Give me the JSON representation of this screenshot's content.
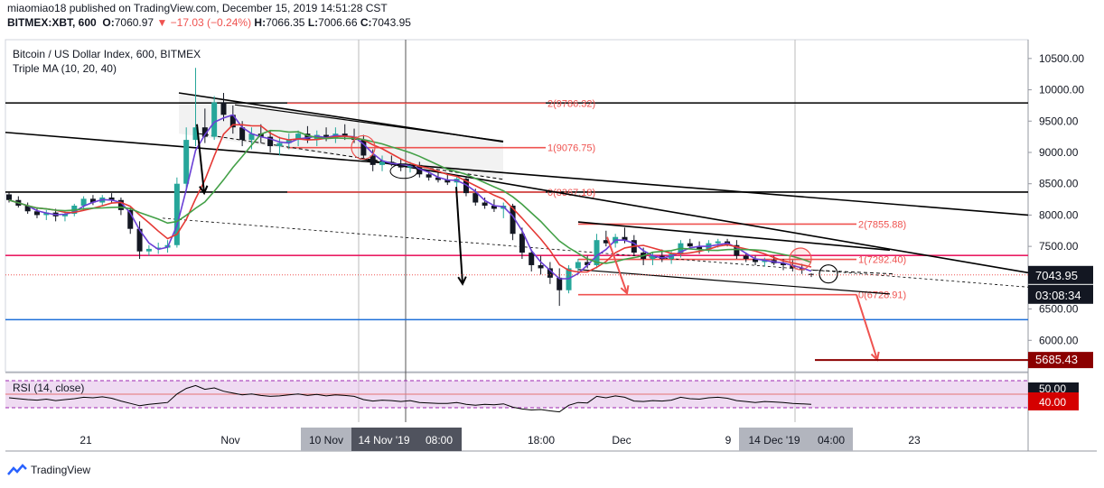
{
  "header": {
    "line1": "miaomiao18 published on TradingView.com, December 15, 2019 14:51:28 CST",
    "symbol": "BITMEX:XBT, 600",
    "open_label": "O:",
    "open": "7060.97",
    "change": "▼ −17.03 (−0.24%)",
    "high_label": "H:",
    "high": "7066.35",
    "low_label": "L:",
    "low": "7006.66",
    "close_label": "C:",
    "close": "7043.95"
  },
  "legend": {
    "title": "Bitcoin / US Dollar Index, 600, BITMEX",
    "indicator": "Triple MA (10, 20, 40)",
    "rsi": "RSI (14, close)"
  },
  "footer": {
    "brand": "TradingView"
  },
  "colors": {
    "up": "#26a69a",
    "down": "#131722",
    "ma10": "#6a3fd6",
    "ma20": "#e53935",
    "ma40": "#43a047",
    "fib": "#ef5350",
    "trend": "#000000",
    "support_blue": "#1e6fd9",
    "resistance_pink": "#e91e63",
    "rsi_band": "#e1bee7",
    "price_tag": "#131722",
    "target_tag": "#8b0000",
    "rsi_tag": "#d50000"
  },
  "chart_data": {
    "type": "candlestick",
    "y_axis": {
      "min": 5500,
      "max": 10800,
      "ticks": [
        "10500.00",
        "10000.00",
        "9500.00",
        "9000.00",
        "8500.00",
        "8000.00",
        "7500.00",
        "7000.00",
        "6500.00",
        "6000.00"
      ]
    },
    "x_ticks": [
      "21",
      "Nov",
      "18:00",
      "Dec",
      "9",
      "23"
    ],
    "x_highlight_labels": [
      "10 Nov",
      "14 Nov '19",
      "08:00",
      "14 Dec '19",
      "04:00"
    ],
    "candles": [
      [
        8330,
        8360,
        8200,
        8240
      ],
      [
        8240,
        8300,
        8120,
        8150
      ],
      [
        8150,
        8200,
        8020,
        8060
      ],
      [
        8060,
        8120,
        7950,
        8000
      ],
      [
        8000,
        8080,
        7920,
        8040
      ],
      [
        8040,
        8100,
        7900,
        7980
      ],
      [
        7980,
        8060,
        7900,
        8020
      ],
      [
        8020,
        8180,
        7980,
        8150
      ],
      [
        8150,
        8300,
        8080,
        8260
      ],
      [
        8260,
        8320,
        8160,
        8200
      ],
      [
        8200,
        8320,
        8140,
        8280
      ],
      [
        8280,
        8350,
        8180,
        8240
      ],
      [
        8240,
        8280,
        8000,
        8080
      ],
      [
        8080,
        8120,
        7700,
        7780
      ],
      [
        7780,
        7900,
        7300,
        7420
      ],
      [
        7420,
        7520,
        7350,
        7460
      ],
      [
        7460,
        7560,
        7380,
        7480
      ],
      [
        7480,
        7600,
        7400,
        7520
      ],
      [
        7520,
        8600,
        7480,
        8500
      ],
      [
        8500,
        9400,
        8400,
        9200
      ],
      [
        9200,
        10350,
        9100,
        9400
      ],
      [
        9400,
        9700,
        9150,
        9250
      ],
      [
        9250,
        9900,
        9200,
        9800
      ],
      [
        9800,
        9950,
        9500,
        9600
      ],
      [
        9600,
        9750,
        9300,
        9400
      ],
      [
        9400,
        9500,
        9100,
        9200
      ],
      [
        9200,
        9400,
        9050,
        9300
      ],
      [
        9300,
        9450,
        9150,
        9250
      ],
      [
        9250,
        9350,
        9000,
        9100
      ],
      [
        9100,
        9250,
        8950,
        9150
      ],
      [
        9150,
        9300,
        9050,
        9200
      ],
      [
        9200,
        9350,
        9100,
        9300
      ],
      [
        9300,
        9420,
        9150,
        9200
      ],
      [
        9200,
        9350,
        9100,
        9280
      ],
      [
        9280,
        9400,
        9180,
        9230
      ],
      [
        9230,
        9400,
        9150,
        9300
      ],
      [
        9300,
        9450,
        9200,
        9250
      ],
      [
        9250,
        9380,
        9150,
        9200
      ],
      [
        9200,
        9280,
        8900,
        8950
      ],
      [
        8950,
        9050,
        8700,
        8800
      ],
      [
        8800,
        8950,
        8700,
        8850
      ],
      [
        8850,
        8950,
        8780,
        8820
      ],
      [
        8820,
        8900,
        8700,
        8760
      ],
      [
        8760,
        8850,
        8680,
        8800
      ],
      [
        8800,
        8850,
        8600,
        8650
      ],
      [
        8650,
        8720,
        8550,
        8600
      ],
      [
        8600,
        8680,
        8520,
        8560
      ],
      [
        8560,
        8640,
        8480,
        8520
      ],
      [
        8520,
        8620,
        8450,
        8580
      ],
      [
        8580,
        8620,
        8300,
        8350
      ],
      [
        8350,
        8420,
        8150,
        8200
      ],
      [
        8200,
        8280,
        8100,
        8150
      ],
      [
        8150,
        8250,
        8050,
        8100
      ],
      [
        8100,
        8200,
        7950,
        8150
      ],
      [
        8150,
        8180,
        7600,
        7700
      ],
      [
        7700,
        7800,
        7300,
        7400
      ],
      [
        7400,
        7450,
        7100,
        7200
      ],
      [
        7200,
        7350,
        7050,
        7150
      ],
      [
        7150,
        7250,
        6900,
        7000
      ],
      [
        7000,
        7150,
        6550,
        6800
      ],
      [
        6800,
        7200,
        6750,
        7150
      ],
      [
        7150,
        7300,
        7050,
        7250
      ],
      [
        7250,
        7350,
        7150,
        7200
      ],
      [
        7200,
        7700,
        7150,
        7600
      ],
      [
        7600,
        7750,
        7500,
        7550
      ],
      [
        7550,
        7700,
        7480,
        7650
      ],
      [
        7650,
        7800,
        7550,
        7600
      ],
      [
        7600,
        7680,
        7350,
        7400
      ],
      [
        7400,
        7480,
        7200,
        7300
      ],
      [
        7300,
        7400,
        7200,
        7350
      ],
      [
        7350,
        7450,
        7250,
        7300
      ],
      [
        7300,
        7420,
        7220,
        7380
      ],
      [
        7380,
        7600,
        7320,
        7550
      ],
      [
        7550,
        7620,
        7450,
        7500
      ],
      [
        7500,
        7580,
        7380,
        7450
      ],
      [
        7450,
        7600,
        7400,
        7550
      ],
      [
        7550,
        7620,
        7480,
        7580
      ],
      [
        7580,
        7620,
        7500,
        7520
      ],
      [
        7520,
        7600,
        7300,
        7350
      ],
      [
        7350,
        7400,
        7250,
        7300
      ],
      [
        7300,
        7350,
        7200,
        7250
      ],
      [
        7250,
        7320,
        7180,
        7280
      ],
      [
        7280,
        7350,
        7200,
        7230
      ],
      [
        7230,
        7300,
        7120,
        7200
      ],
      [
        7200,
        7280,
        7100,
        7150
      ],
      [
        7150,
        7220,
        7060,
        7120
      ],
      [
        7060,
        7070,
        7010,
        7044
      ]
    ],
    "fib_levels": [
      {
        "label": "2(9786.32)",
        "value": 9786.32
      },
      {
        "label": "1(9076.75)",
        "value": 9076.75
      },
      {
        "label": "0(8367.18)",
        "value": 8367.18
      },
      {
        "label": "2(7855.88)",
        "value": 7855.88
      },
      {
        "label": "1(7292.40)",
        "value": 7292.4
      },
      {
        "label": "0(6728.91)",
        "value": 6728.91
      }
    ],
    "horizontal_lines": {
      "black": [
        9790,
        8367
      ],
      "pink": 7355,
      "blue": 6330
    },
    "price_tags": {
      "last": "7043.95",
      "countdown": "03:08:34",
      "target": "5685.43",
      "rsi_a": "50.00",
      "rsi_b": "40.00"
    }
  }
}
